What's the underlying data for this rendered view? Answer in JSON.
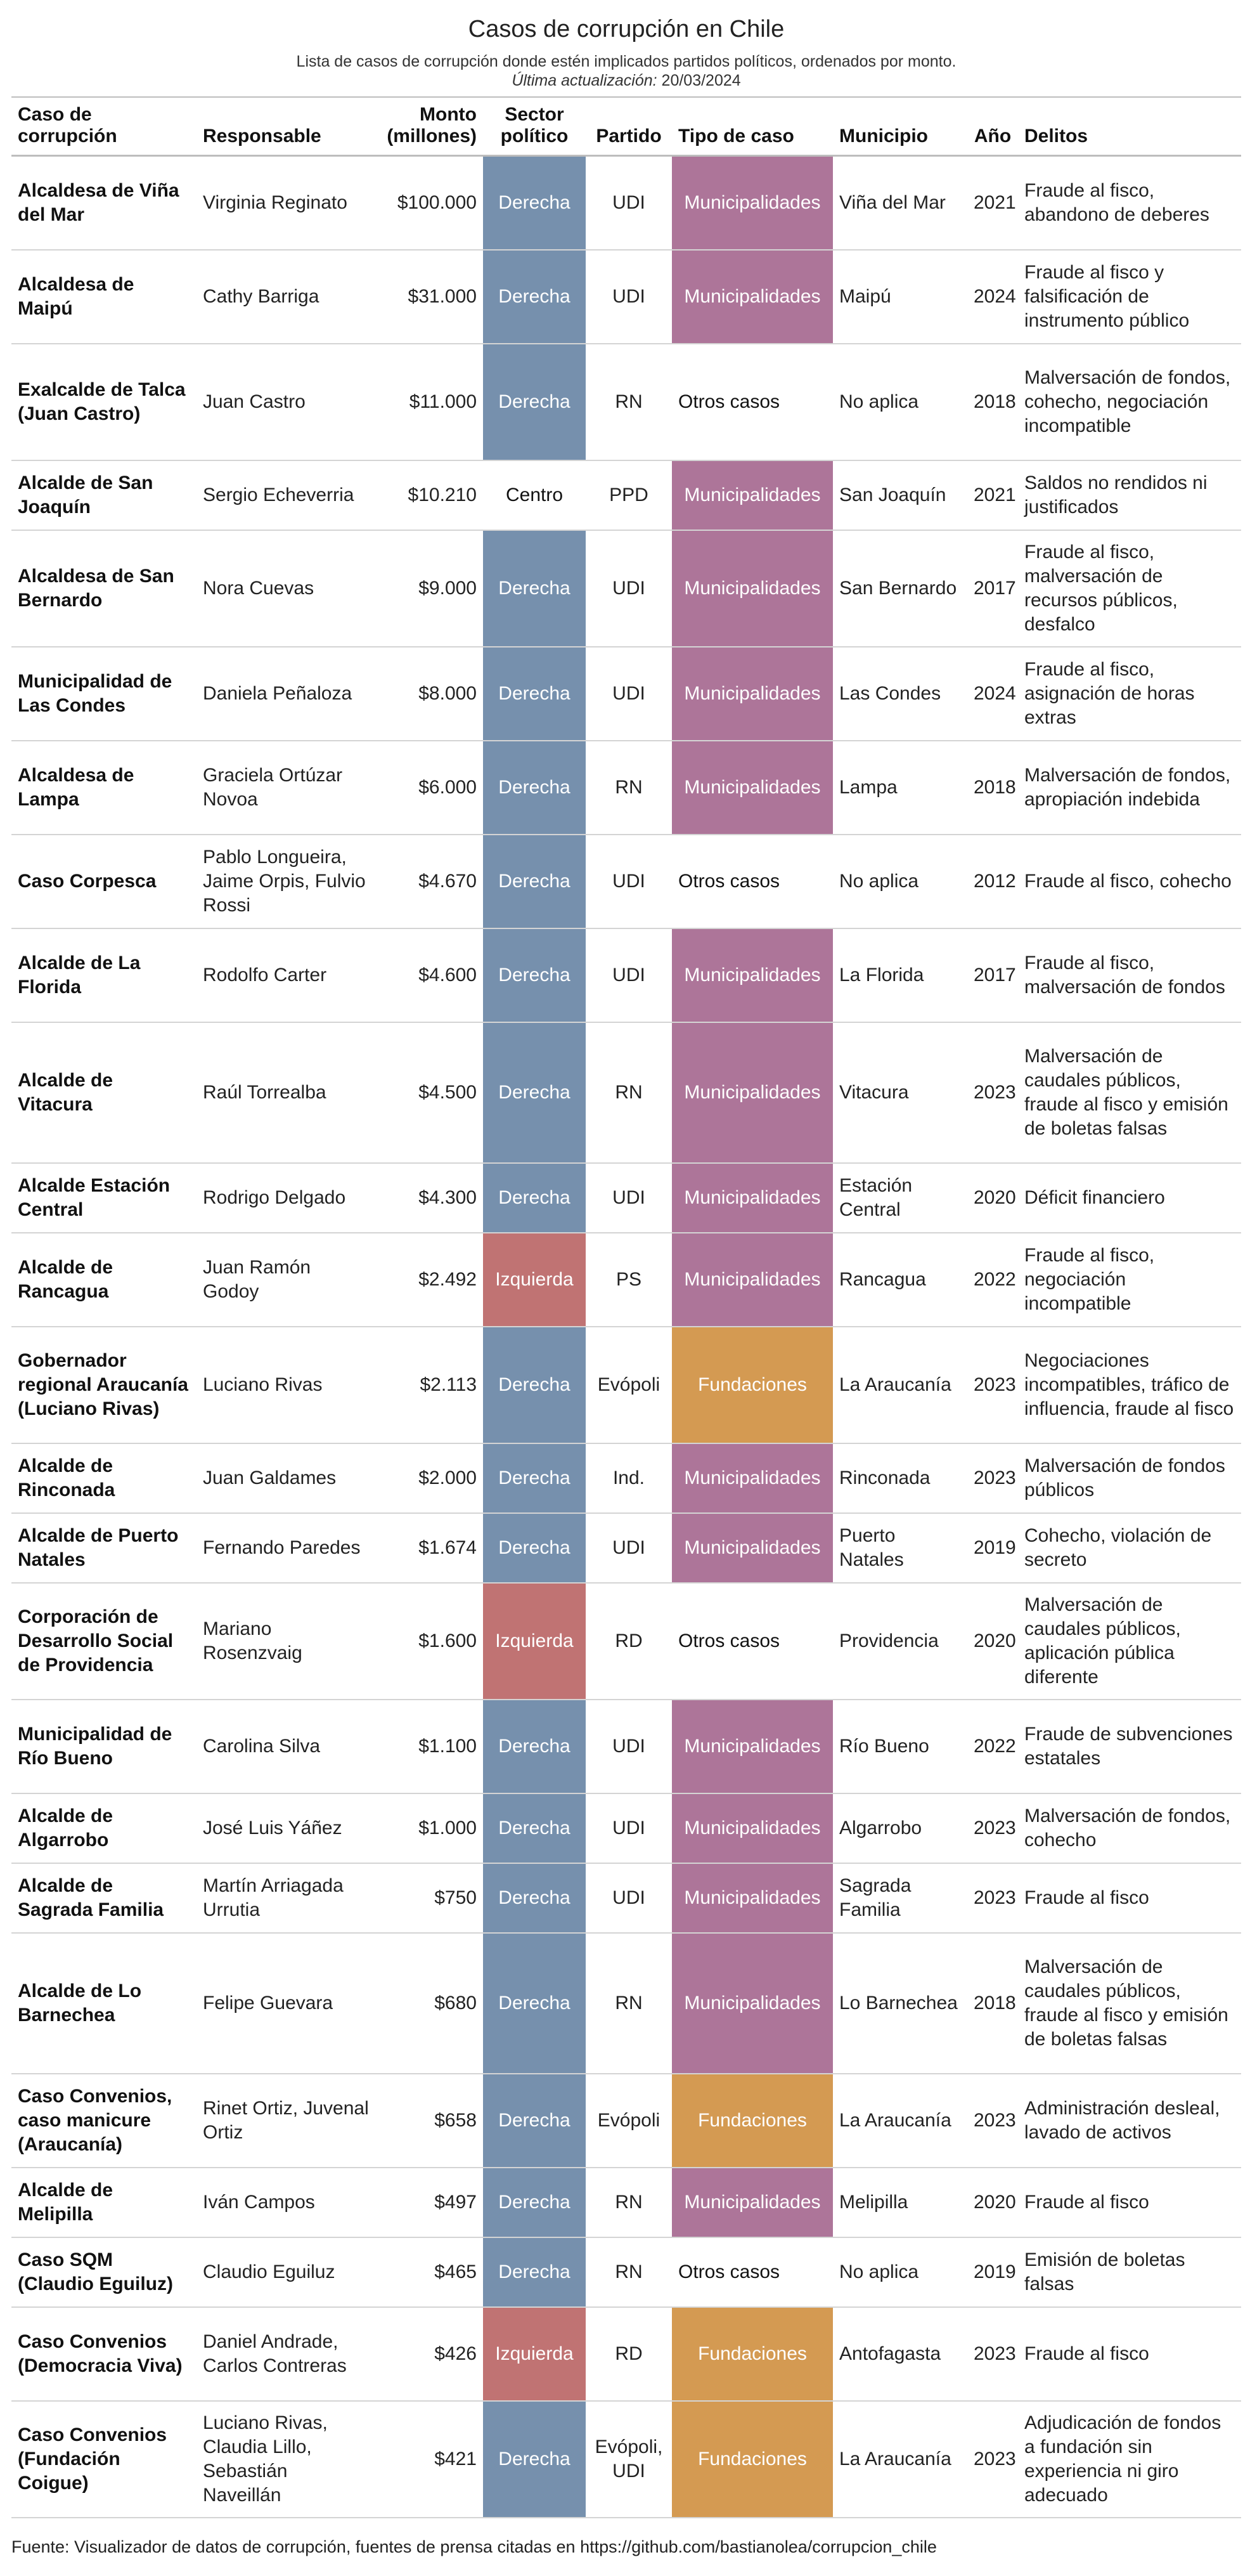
{
  "title": "Casos de corrupción en Chile",
  "subtitle": "Lista de casos de corrupción donde estén implicados partidos políticos, ordenados por monto.",
  "updated_label": "Última actualización:",
  "updated_date": "20/03/2024",
  "headers": {
    "caso": [
      "Caso de",
      "corrupción"
    ],
    "responsable": "Responsable",
    "monto": [
      "Monto",
      "(millones)"
    ],
    "sector": [
      "Sector",
      "político"
    ],
    "partido": "Partido",
    "tipo": "Tipo de caso",
    "municipio": "Municipio",
    "anio": "Año",
    "delitos": "Delitos"
  },
  "colors": {
    "Derecha": "#7690ad",
    "Izquierda": "#c07373",
    "Centro": "#ffffff",
    "Municipalidades": "#ad7599",
    "Fundaciones": "#d49a52",
    "Otros casos": "#ffffff"
  },
  "rows": [
    {
      "caso": "Alcaldesa de Viña del Mar",
      "responsable": "Virginia Reginato",
      "monto": "$100.000",
      "sector": "Derecha",
      "partido": "UDI",
      "tipo": "Municipalidades",
      "municipio": "Viña del Mar",
      "anio": "2021",
      "delitos": "Fraude al fisco, abandono de deberes"
    },
    {
      "caso": "Alcaldesa de Maipú",
      "responsable": "Cathy Barriga",
      "monto": "$31.000",
      "sector": "Derecha",
      "partido": "UDI",
      "tipo": "Municipalidades",
      "municipio": "Maipú",
      "anio": "2024",
      "delitos": "Fraude al fisco y falsificación de instrumento público"
    },
    {
      "caso": "Exalcalde de Talca (Juan Castro)",
      "responsable": "Juan Castro",
      "monto": "$11.000",
      "sector": "Derecha",
      "partido": "RN",
      "tipo": "Otros casos",
      "municipio": "No aplica",
      "anio": "2018",
      "delitos": "Malversación de fondos, cohecho, negociación incompatible"
    },
    {
      "caso": "Alcalde de San Joaquín",
      "responsable": "Sergio Echeverria",
      "monto": "$10.210",
      "sector": "Centro",
      "partido": "PPD",
      "tipo": "Municipalidades",
      "municipio": "San Joaquín",
      "anio": "2021",
      "delitos": "Saldos no rendidos ni justificados"
    },
    {
      "caso": "Alcaldesa de San Bernardo",
      "responsable": "Nora Cuevas",
      "monto": "$9.000",
      "sector": "Derecha",
      "partido": "UDI",
      "tipo": "Municipalidades",
      "municipio": "San Bernardo",
      "anio": "2017",
      "delitos": "Fraude al fisco, malversación de recursos públicos, desfalco"
    },
    {
      "caso": "Municipalidad de Las Condes",
      "responsable": "Daniela Peñaloza",
      "monto": "$8.000",
      "sector": "Derecha",
      "partido": "UDI",
      "tipo": "Municipalidades",
      "municipio": "Las Condes",
      "anio": "2024",
      "delitos": "Fraude al fisco, asignación de horas extras"
    },
    {
      "caso": "Alcaldesa de Lampa",
      "responsable": "Graciela Ortúzar Novoa",
      "monto": "$6.000",
      "sector": "Derecha",
      "partido": "RN",
      "tipo": "Municipalidades",
      "municipio": "Lampa",
      "anio": "2018",
      "delitos": "Malversación de fondos, apropiación indebida"
    },
    {
      "caso": "Caso Corpesca",
      "responsable": "Pablo Longueira, Jaime Orpis, Fulvio Rossi",
      "monto": "$4.670",
      "sector": "Derecha",
      "partido": "UDI",
      "tipo": "Otros casos",
      "municipio": "No aplica",
      "anio": "2012",
      "delitos": "Fraude al fisco, cohecho"
    },
    {
      "caso": "Alcalde de La Florida",
      "responsable": "Rodolfo Carter",
      "monto": "$4.600",
      "sector": "Derecha",
      "partido": "UDI",
      "tipo": "Municipalidades",
      "municipio": "La Florida",
      "anio": "2017",
      "delitos": "Fraude al fisco, malversación de fondos"
    },
    {
      "caso": "Alcalde de Vitacura",
      "responsable": "Raúl Torrealba",
      "monto": "$4.500",
      "sector": "Derecha",
      "partido": "RN",
      "tipo": "Municipalidades",
      "municipio": "Vitacura",
      "anio": "2023",
      "delitos": "Malversación de caudales públicos, fraude al fisco y emisión de boletas falsas"
    },
    {
      "caso": "Alcalde Estación Central",
      "responsable": "Rodrigo Delgado",
      "monto": "$4.300",
      "sector": "Derecha",
      "partido": "UDI",
      "tipo": "Municipalidades",
      "municipio": "Estación Central",
      "anio": "2020",
      "delitos": "Déficit financiero"
    },
    {
      "caso": "Alcalde de Rancagua",
      "responsable": "Juan Ramón Godoy",
      "monto": "$2.492",
      "sector": "Izquierda",
      "partido": "PS",
      "tipo": "Municipalidades",
      "municipio": "Rancagua",
      "anio": "2022",
      "delitos": "Fraude al fisco, negociación incompatible"
    },
    {
      "caso": "Gobernador regional Araucanía (Luciano Rivas)",
      "responsable": "Luciano Rivas",
      "monto": "$2.113",
      "sector": "Derecha",
      "partido": "Evópoli",
      "tipo": "Fundaciones",
      "municipio": "La Araucanía",
      "anio": "2023",
      "delitos": "Negociaciones incompatibles, tráfico de influencia, fraude al fisco"
    },
    {
      "caso": "Alcalde de Rinconada",
      "responsable": "Juan Galdames",
      "monto": "$2.000",
      "sector": "Derecha",
      "partido": "Ind.",
      "tipo": "Municipalidades",
      "municipio": "Rinconada",
      "anio": "2023",
      "delitos": "Malversación de fondos públicos"
    },
    {
      "caso": "Alcalde de Puerto Natales",
      "responsable": "Fernando Paredes",
      "monto": "$1.674",
      "sector": "Derecha",
      "partido": "UDI",
      "tipo": "Municipalidades",
      "municipio": "Puerto Natales",
      "anio": "2019",
      "delitos": "Cohecho, violación de secreto"
    },
    {
      "caso": "Corporación de Desarrollo Social de Providencia",
      "responsable": "Mariano Rosenzvaig",
      "monto": "$1.600",
      "sector": "Izquierda",
      "partido": "RD",
      "tipo": "Otros casos",
      "municipio": "Providencia",
      "anio": "2020",
      "delitos": "Malversación de caudales públicos, aplicación pública diferente"
    },
    {
      "caso": "Municipalidad de Río Bueno",
      "responsable": "Carolina Silva",
      "monto": "$1.100",
      "sector": "Derecha",
      "partido": "UDI",
      "tipo": "Municipalidades",
      "municipio": "Río Bueno",
      "anio": "2022",
      "delitos": "Fraude de subvenciones estatales"
    },
    {
      "caso": "Alcalde de Algarrobo",
      "responsable": "José Luis Yáñez",
      "monto": "$1.000",
      "sector": "Derecha",
      "partido": "UDI",
      "tipo": "Municipalidades",
      "municipio": "Algarrobo",
      "anio": "2023",
      "delitos": "Malversación de fondos, cohecho"
    },
    {
      "caso": "Alcalde de Sagrada Familia",
      "responsable": "Martín Arriagada Urrutia",
      "monto": "$750",
      "sector": "Derecha",
      "partido": "UDI",
      "tipo": "Municipalidades",
      "municipio": "Sagrada Familia",
      "anio": "2023",
      "delitos": "Fraude al fisco"
    },
    {
      "caso": "Alcalde de Lo Barnechea",
      "responsable": "Felipe Guevara",
      "monto": "$680",
      "sector": "Derecha",
      "partido": "RN",
      "tipo": "Municipalidades",
      "municipio": "Lo Barnechea",
      "anio": "2018",
      "delitos": "Malversación de caudales públicos, fraude al fisco y emisión de boletas falsas"
    },
    {
      "caso": "Caso Convenios, caso manicure (Araucanía)",
      "responsable": "Rinet Ortiz, Juvenal Ortiz",
      "monto": "$658",
      "sector": "Derecha",
      "partido": "Evópoli",
      "tipo": "Fundaciones",
      "municipio": "La Araucanía",
      "anio": "2023",
      "delitos": "Administración desleal, lavado de activos"
    },
    {
      "caso": "Alcalde de Melipilla",
      "responsable": "Iván Campos",
      "monto": "$497",
      "sector": "Derecha",
      "partido": "RN",
      "tipo": "Municipalidades",
      "municipio": "Melipilla",
      "anio": "2020",
      "delitos": "Fraude al fisco"
    },
    {
      "caso": "Caso SQM (Claudio Eguiluz)",
      "responsable": "Claudio Eguiluz",
      "monto": "$465",
      "sector": "Derecha",
      "partido": "RN",
      "tipo": "Otros casos",
      "municipio": "No aplica",
      "anio": "2019",
      "delitos": "Emisión de boletas falsas"
    },
    {
      "caso": "Caso Convenios (Democracia Viva)",
      "responsable": "Daniel Andrade, Carlos Contreras",
      "monto": "$426",
      "sector": "Izquierda",
      "partido": "RD",
      "tipo": "Fundaciones",
      "municipio": "Antofagasta",
      "anio": "2023",
      "delitos": "Fraude al fisco"
    },
    {
      "caso": "Caso Convenios (Fundación Coigue)",
      "responsable": "Luciano Rivas, Claudia Lillo, Sebastián Naveillán",
      "monto": "$421",
      "sector": "Derecha",
      "partido": "Evópoli, UDI",
      "tipo": "Fundaciones",
      "municipio": "La Araucanía",
      "anio": "2023",
      "delitos": "Adjudicación de fondos a fundación sin experiencia ni giro adecuado"
    }
  ],
  "source": "Fuente: Visualizador de datos de corrupción, fuentes de prensa citadas en https://github.com/bastianolea/corrupcion_chile"
}
